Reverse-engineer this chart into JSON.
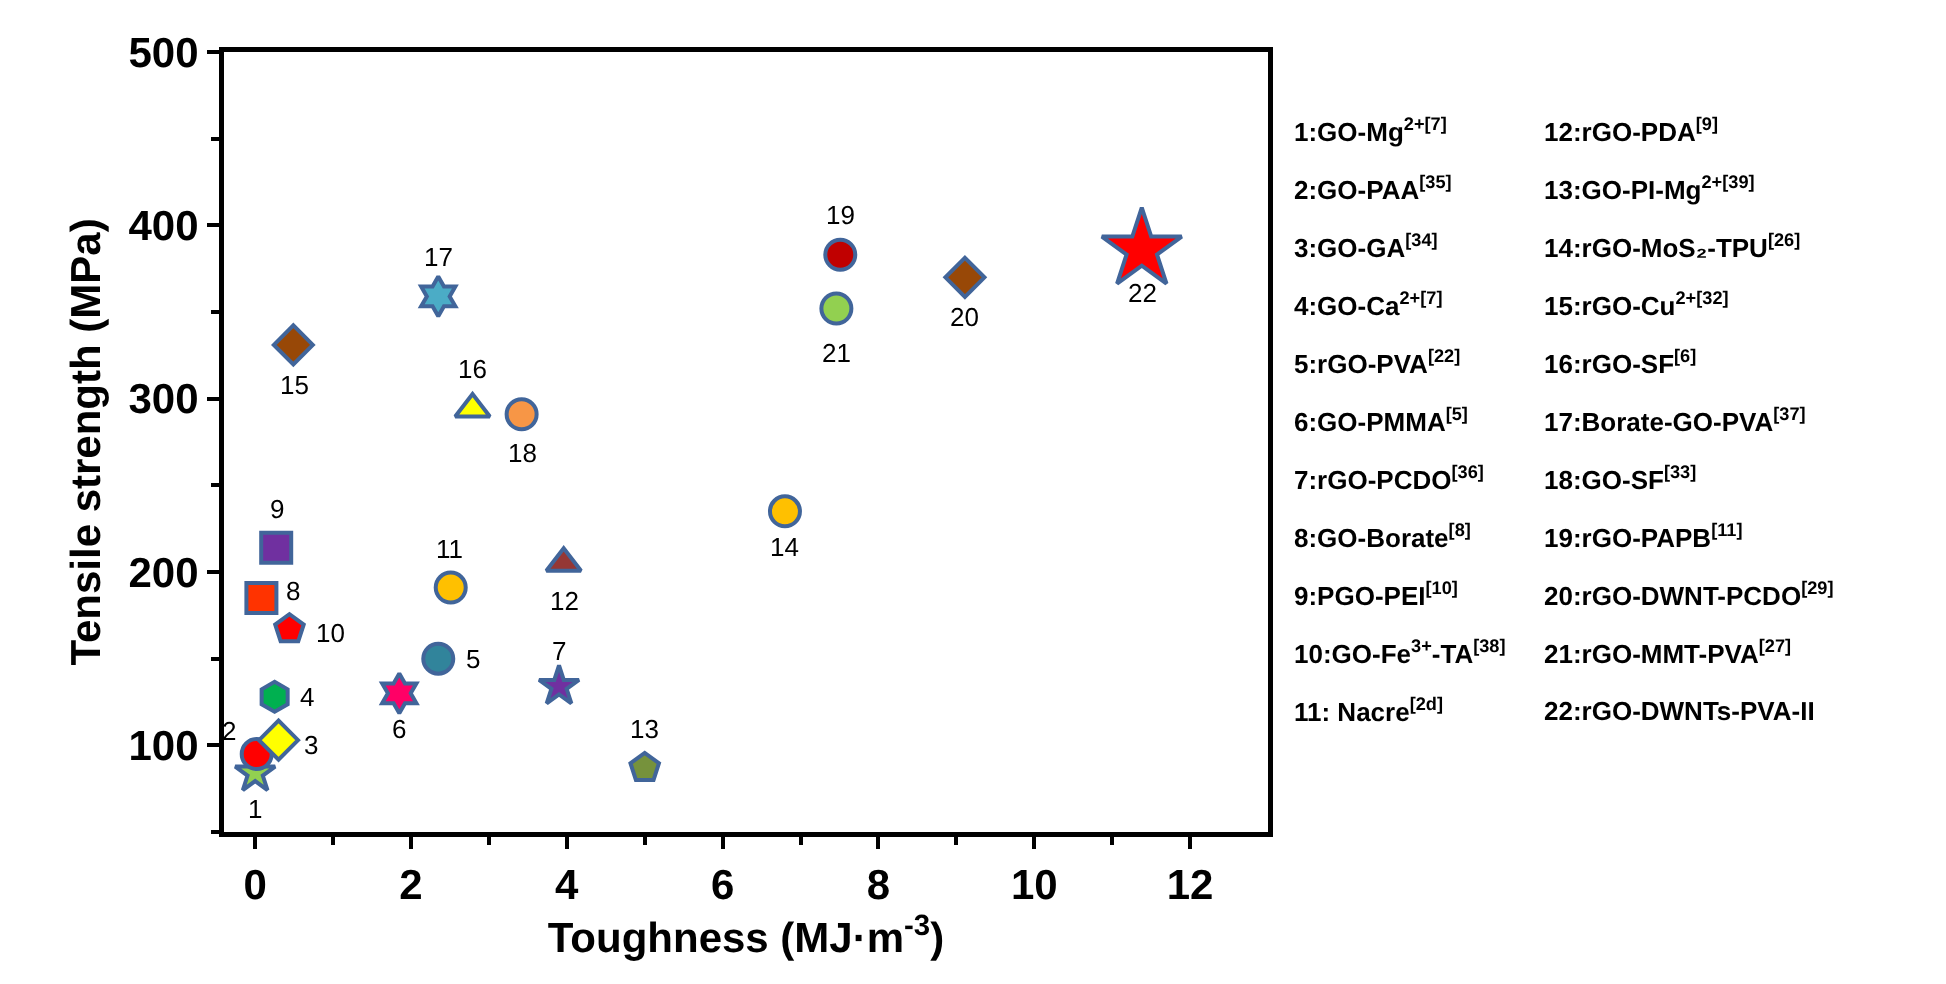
{
  "chart_data": {
    "type": "scatter",
    "xlabel": "Toughness (MJ·m$^{-3}$)",
    "ylabel": "Tensile strength (MPa)",
    "xlim": [
      -0.4,
      13
    ],
    "xticks": [
      0,
      2,
      4,
      6,
      8,
      10,
      12
    ],
    "ylim": [
      50,
      500
    ],
    "yticks": [
      100,
      200,
      300,
      400,
      500
    ],
    "grid": false,
    "legend": false,
    "series": [
      {
        "name": "1",
        "color": "#92d050",
        "marker": "star",
        "x": [
          0
        ],
        "values": [
          84
        ]
      },
      {
        "name": "2",
        "color": "#ff0000",
        "marker": "circle",
        "x": [
          0.02
        ],
        "values": [
          95
        ]
      },
      {
        "name": "3",
        "color": "#ffff00",
        "marker": "diamond",
        "x": [
          0.3
        ],
        "values": [
          103
        ]
      },
      {
        "name": "4",
        "color": "#00b050",
        "x": [
          0.25
        ],
        "values": [
          128
        ]
      },
      {
        "name": "5",
        "color": "#31849b",
        "marker": "circle",
        "x": [
          2.35
        ],
        "values": [
          150
        ]
      },
      {
        "name": "6",
        "color": "#ff0066",
        "x": [
          1.85
        ],
        "values": [
          130
        ]
      },
      {
        "name": "7",
        "color": "#7030a0",
        "marker": "star",
        "x": [
          3.9
        ],
        "values": [
          134
        ]
      },
      {
        "name": "8",
        "color": "#ff3300",
        "marker": "square",
        "x": [
          0.08
        ],
        "values": [
          185
        ]
      },
      {
        "name": "9",
        "color": "#7030a0",
        "marker": "square",
        "x": [
          0.27
        ],
        "values": [
          214
        ]
      },
      {
        "name": "10",
        "color": "#ff0000",
        "x": [
          0.44
        ],
        "values": [
          167
        ]
      },
      {
        "name": "11",
        "color": "#ffc000",
        "marker": "circle",
        "x": [
          2.51
        ],
        "values": [
          191
        ]
      },
      {
        "name": "12",
        "color": "#953735",
        "marker": "triangle",
        "x": [
          3.96
        ],
        "values": [
          205
        ]
      },
      {
        "name": "13",
        "color": "#76923c",
        "x": [
          5.0
        ],
        "values": [
          87
        ]
      },
      {
        "name": "14",
        "color": "#ffc000",
        "marker": "circle",
        "x": [
          6.8
        ],
        "values": [
          235
        ]
      },
      {
        "name": "15",
        "color": "#984807",
        "marker": "diamond",
        "x": [
          0.49
        ],
        "values": [
          331
        ]
      },
      {
        "name": "16",
        "color": "#ffff00",
        "marker": "triangle",
        "x": [
          2.79
        ],
        "values": [
          294
        ]
      },
      {
        "name": "17",
        "color": "#4bacc6",
        "x": [
          2.35
        ],
        "values": [
          359
        ]
      },
      {
        "name": "18",
        "color": "#f79646",
        "marker": "circle",
        "x": [
          3.42
        ],
        "values": [
          291
        ]
      },
      {
        "name": "19",
        "color": "#c00000",
        "marker": "circle",
        "x": [
          7.51
        ],
        "values": [
          383
        ]
      },
      {
        "name": "20",
        "color": "#984807",
        "marker": "diamond",
        "x": [
          9.11
        ],
        "values": [
          370
        ]
      },
      {
        "name": "21",
        "color": "#92d050",
        "marker": "circle",
        "x": [
          7.46
        ],
        "values": [
          352
        ]
      },
      {
        "name": "22",
        "color": "#ff0000",
        "marker": "star",
        "x": [
          11.38
        ],
        "values": [
          386
        ]
      }
    ],
    "annotations": [
      "1:GO-Mg$^{2+[7]}$",
      "2:GO-PAA$^{[35]}$",
      "3:GO-GA$^{[34]}$",
      "4:GO-Ca$^{2+[7]}$",
      "5:rGO-PVA$^{[22]}$",
      "6:GO-PMMA$^{[5]}$",
      "7:rGO-PCDO$^{[36]}$",
      "8:GO-Borate$^{[8]}$",
      "9:PGO-PEI$^{[10]}$",
      "10:GO-Fe$^{3+}$-TA$^{[38]}$",
      "11: Nacre$^{[2d]}$",
      "12:rGO-PDA$^{[9]}$",
      "13:GO-PI-Mg$^{2+[39]}$",
      "14:rGO-MoS₂-TPU$^{[26]}$",
      "15:rGO-Cu$^{2+[32]}$",
      "16:rGO-SF$^{[6]}$",
      "17:Borate-GO-PVA$^{[37]}$",
      "18:GO-SF$^{[33]}$",
      "19:rGO-PAPB$^{[11]}$",
      "20:rGO-DWNT-PCDO$^{[29]}$",
      "21:rGO-MMT-PVA$^{[27]}$",
      "22:rGO-DWNTs-PVA-II"
    ]
  }
}
